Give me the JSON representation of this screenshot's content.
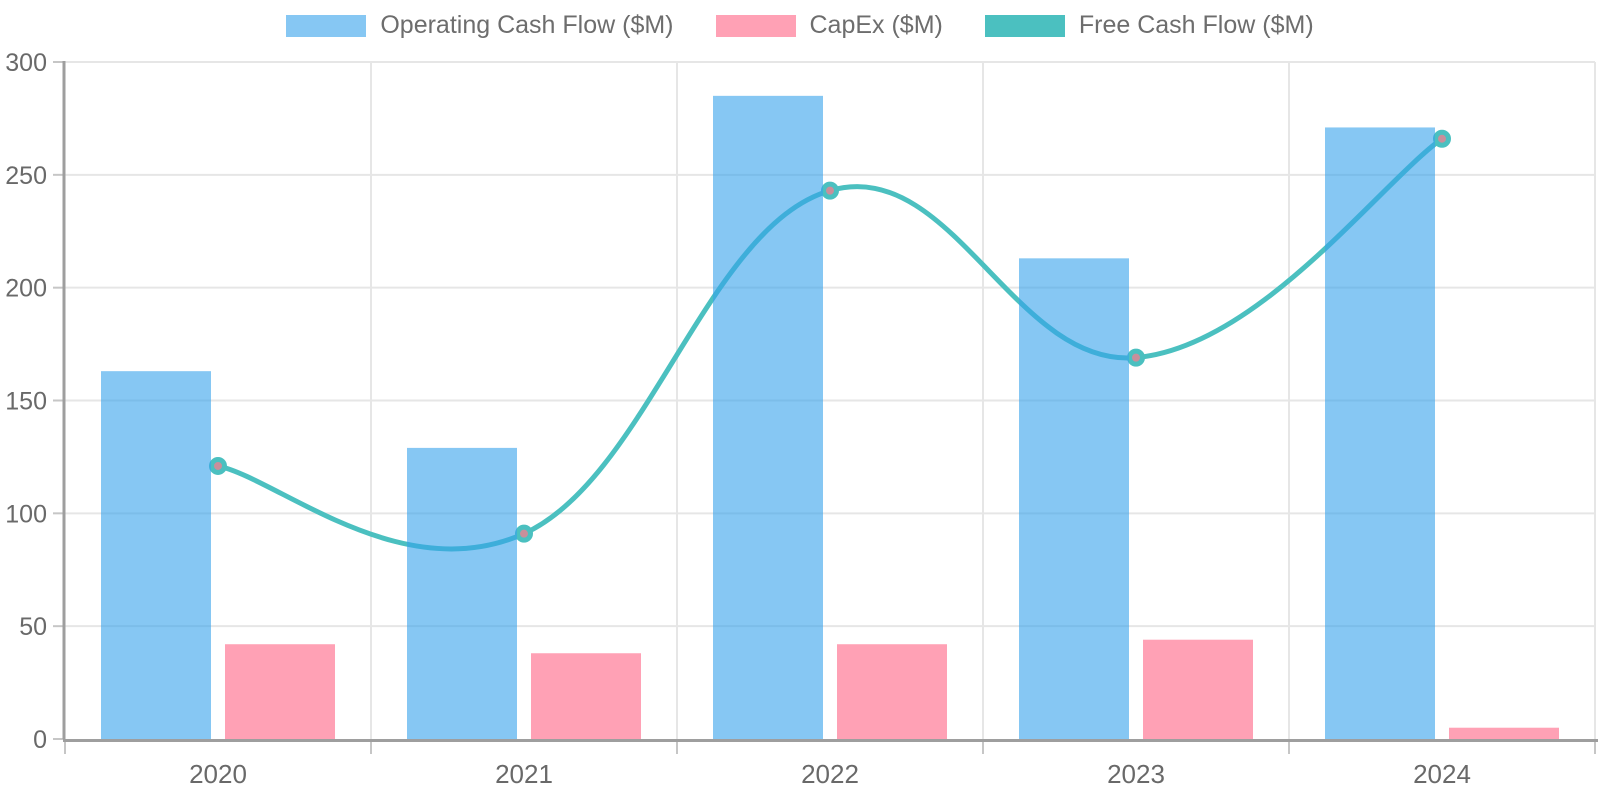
{
  "chart_data": {
    "type": "bar+line combo",
    "title": "",
    "xlabel": "",
    "ylabel": "",
    "categories": [
      "2020",
      "2021",
      "2022",
      "2023",
      "2024"
    ],
    "series": [
      {
        "name": "Operating Cash Flow ($M)",
        "type": "bar",
        "values": [
          163,
          129,
          285,
          213,
          271
        ],
        "color": "rgba(54,162,235,0.6)"
      },
      {
        "name": "CapEx ($M)",
        "type": "bar",
        "values": [
          42,
          38,
          42,
          44,
          5
        ],
        "color": "rgba(255,99,132,0.6)"
      },
      {
        "name": "Free Cash Flow ($M)",
        "type": "line",
        "values": [
          121,
          91,
          243,
          169,
          266
        ],
        "color": "#4bc0c0",
        "point_fill": "#c98f9b",
        "point_border": "#4bc0c0",
        "line_width": 5,
        "tension": 0.4
      }
    ],
    "ylim": [
      0,
      300
    ],
    "yticks": [
      0,
      50,
      100,
      150,
      200,
      250,
      300
    ],
    "grid": true,
    "legend_position": "top"
  },
  "colors": {
    "background": "#ffffff",
    "grid": "#e6e6e6",
    "axis": "#9e9e9e",
    "tick": "#c6c6c6",
    "tick_text": "#696969",
    "legend_text": "#6d6d6d"
  }
}
